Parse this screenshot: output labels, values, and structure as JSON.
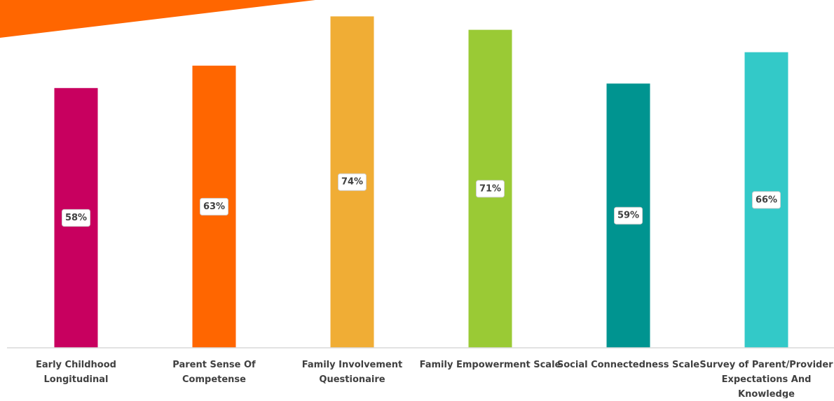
{
  "chart_data": {
    "type": "bar",
    "categories": [
      "Early Childhood Longitudinal",
      "Parent Sense Of Competense",
      "Family Involvement Questionaire",
      "Family Empowerment Scale",
      "Social Connectedness Scale",
      "Survey of Parent/Provider Expectations And Knowledge"
    ],
    "category_label_lines": [
      [
        "Early Childhood",
        "Longitudinal"
      ],
      [
        "Parent Sense Of",
        "Competense"
      ],
      [
        "Family Involvement",
        "Questionaire"
      ],
      [
        "Family Empowerment Scale"
      ],
      [
        "Social Connectedness Scale"
      ],
      [
        "Survey of Parent/Provider",
        "Expectations And",
        "Knowledge"
      ]
    ],
    "values": [
      58,
      63,
      74,
      71,
      59,
      66
    ],
    "value_labels": [
      "58%",
      "63%",
      "74%",
      "71%",
      "59%",
      "66%"
    ],
    "colors": [
      "#c8005f",
      "#ff6600",
      "#f0ad35",
      "#9aca35",
      "#009490",
      "#33c9c8"
    ],
    "title": "",
    "xlabel": "",
    "ylabel": "",
    "ylim": [
      0,
      100
    ],
    "grid": false,
    "legend": "none",
    "decoration_color": "#ff6600"
  }
}
